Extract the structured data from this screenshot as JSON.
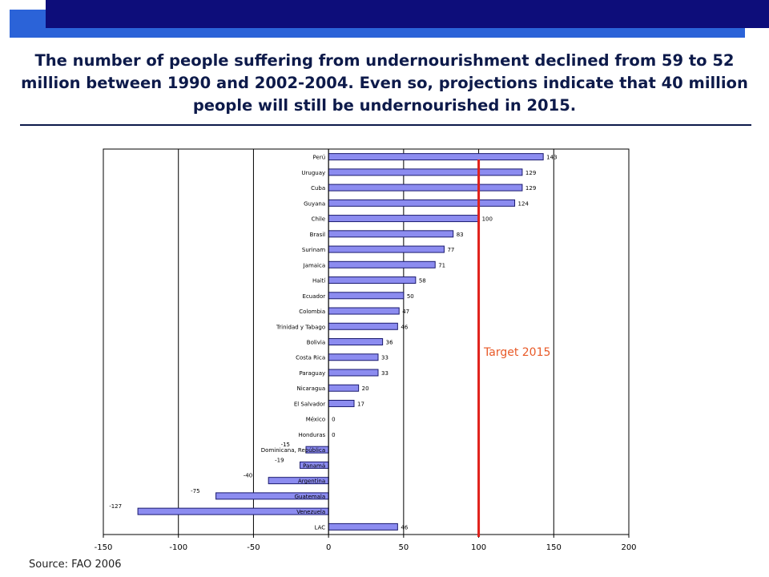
{
  "slide": {
    "title": "The number of people suffering from undernourishment declined from 59 to 52 million between 1990 and 2002-2004.  Even so, projections indicate that 40 million people will still be undernourished in 2015.",
    "source": "Source: FAO 2006",
    "target_label": "Target 2015"
  },
  "colors": {
    "header_dark": "#0d0d7a",
    "header_light": "#2b63d8",
    "bar_fill": "#8c8cf0",
    "bar_stroke": "#1a1a6e",
    "target_line": "#e0201a",
    "target_text": "#e85a28"
  },
  "chart_data": {
    "type": "bar",
    "orientation": "horizontal",
    "categories": [
      "Perú",
      "Uruguay",
      "Cuba",
      "Guyana",
      "Chile",
      "Brasil",
      "Surinam",
      "Jamaica",
      "Haití",
      "Ecuador",
      "Colombia",
      "Trinidad y Tabago",
      "Bolivia",
      "Costa Rica",
      "Paraguay",
      "Nicaragua",
      "El Salvador",
      "México",
      "Honduras",
      "Dominicana, República",
      "Panamá",
      "Argentina",
      "Guatemala",
      "Venezuela",
      "LAC"
    ],
    "values": [
      143,
      129,
      129,
      124,
      100,
      83,
      77,
      71,
      58,
      50,
      47,
      46,
      36,
      33,
      33,
      20,
      17,
      0,
      0,
      -15,
      -19,
      -40,
      -75,
      -127,
      46
    ],
    "value_labels": [
      "143",
      "129",
      "129",
      "124",
      "100",
      "83",
      "77",
      "71",
      "58",
      "50",
      "47",
      "46",
      "36",
      "33",
      "33",
      "20",
      "17",
      "0",
      "0",
      "-15",
      "-19",
      "-40",
      "-75",
      "-127",
      "46"
    ],
    "xlim": [
      -150,
      200
    ],
    "xticks": [
      -150,
      -100,
      -50,
      0,
      50,
      100,
      150,
      200
    ],
    "target_value": 100,
    "gridlines": true
  }
}
